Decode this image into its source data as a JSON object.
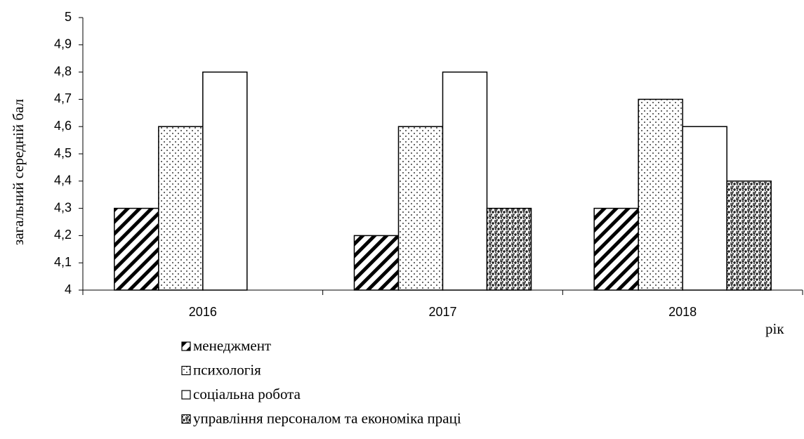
{
  "chart_data": {
    "type": "bar",
    "y_label": "загальний середній бал",
    "x_label": "рік",
    "categories": [
      "2016",
      "2017",
      "2018"
    ],
    "series": [
      {
        "name": "менеджмент",
        "pattern": "hatch",
        "color": "#000000",
        "values": [
          4.3,
          4.2,
          4.3
        ]
      },
      {
        "name": "психологія",
        "pattern": "dots",
        "color": "#000000",
        "values": [
          4.6,
          4.6,
          4.7
        ]
      },
      {
        "name": "соціальна робота",
        "pattern": "solid",
        "color": "#ffffff",
        "values": [
          4.8,
          4.8,
          4.6
        ]
      },
      {
        "name": "управління персоналом та економіка праці",
        "pattern": "weave",
        "color": "#000000",
        "values": [
          null,
          4.3,
          4.4
        ]
      }
    ],
    "ylim": [
      4,
      5
    ],
    "yticks": [
      4,
      {
        "value": 4.1,
        "label": "4,1"
      },
      {
        "value": 4.2,
        "label": "4,2"
      },
      {
        "value": 4.3,
        "label": "4,3"
      },
      {
        "value": 4.4,
        "label": "4,4"
      },
      {
        "value": 4.5,
        "label": "4,5"
      },
      {
        "value": 4.6,
        "label": "4,6"
      },
      {
        "value": 4.7,
        "label": "4,7"
      },
      {
        "value": 4.8,
        "label": "4,8"
      },
      {
        "value": 4.9,
        "label": "4,9"
      },
      5
    ],
    "grid": false,
    "legend": "bottom-left"
  }
}
